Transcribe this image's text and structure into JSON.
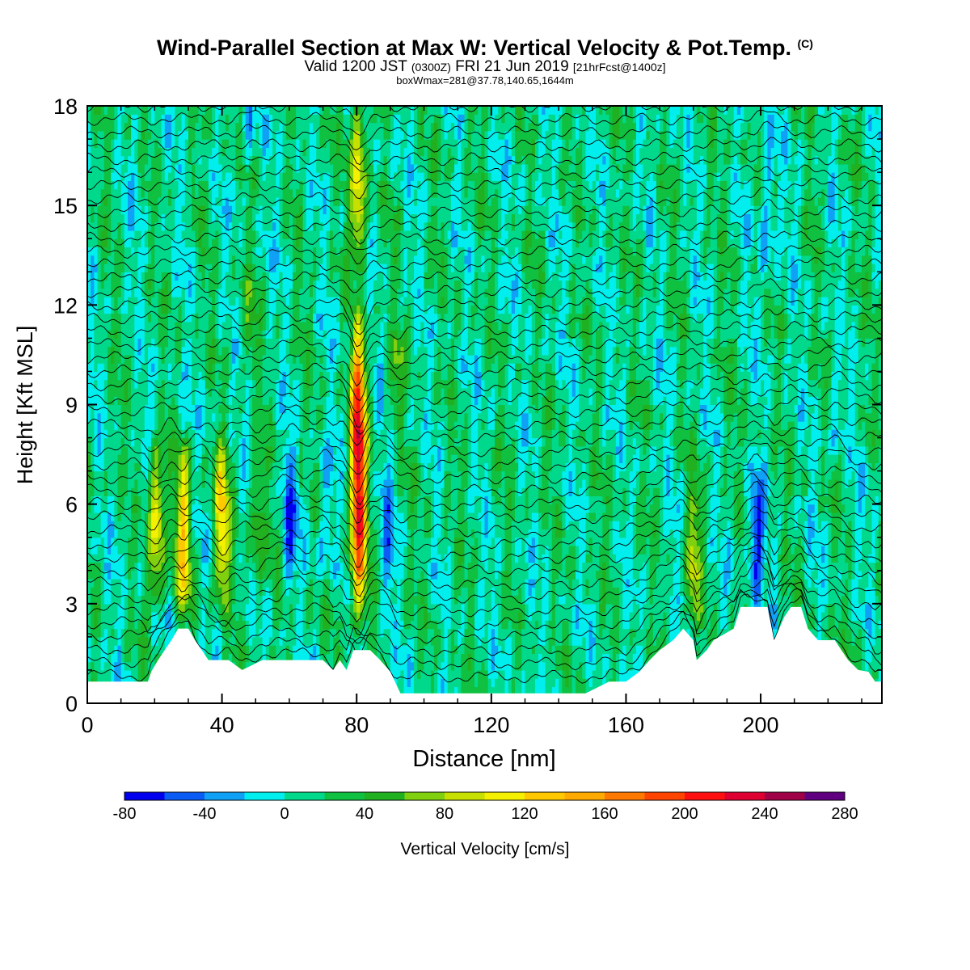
{
  "header": {
    "title": "Wind-Parallel Section at Max W: Vertical Velocity & Pot.Temp.",
    "copyright": "(C)",
    "valid_prefix": "Valid 1200 JST",
    "valid_utc": "(0300Z)",
    "valid_date": "FRI 21 Jun 2019",
    "forecast": "[21hrFcst@1400z]",
    "boxwmax": "boxWmax=281@37.78,140.65,1644m"
  },
  "chart_data": {
    "type": "heatmap",
    "xlabel": "Distance [nm]",
    "ylabel": "Height [Kft MSL]",
    "xlim": [
      0,
      236
    ],
    "ylim": [
      0,
      18
    ],
    "x_ticks": [
      0,
      40,
      80,
      120,
      160,
      200
    ],
    "y_ticks": [
      0,
      3,
      6,
      9,
      12,
      15,
      18
    ],
    "colorbar": {
      "label": "Vertical Velocity [cm/s]",
      "tick_labels": [
        "-80",
        "-40",
        "0",
        "40",
        "80",
        "120",
        "160",
        "200",
        "240",
        "280"
      ],
      "levels_start": -80,
      "levels_step": 20,
      "colors": [
        "#0000ee",
        "#0a5cf5",
        "#10a0f5",
        "#00eeee",
        "#00d98c",
        "#10c040",
        "#20b020",
        "#80d010",
        "#c8e000",
        "#f4f000",
        "#ffc800",
        "#ffaa00",
        "#ff7800",
        "#ff4400",
        "#ff1010",
        "#dd0030",
        "#a00048",
        "#600080"
      ],
      "placement": "bottom"
    },
    "background_level": 10,
    "w_max": 281,
    "features": [
      {
        "x": 20.5,
        "z0": 3.2,
        "z1": 7.6,
        "w": 110
      },
      {
        "x": 28.5,
        "z0": 3.0,
        "z1": 7.6,
        "w": 110
      },
      {
        "x": 40,
        "z0": 3.0,
        "z1": 7.8,
        "w": 100
      },
      {
        "x": 50.5,
        "z0": 3.0,
        "z1": 7.6,
        "w": 40
      },
      {
        "x": 80.5,
        "z0": 2.5,
        "z1": 11.5,
        "w": 220
      },
      {
        "x": 80.5,
        "z0": 13.5,
        "z1": 18,
        "w": 110
      },
      {
        "x": 92,
        "z0": 8.5,
        "z1": 10.8,
        "w": 40
      },
      {
        "x": 60,
        "z0": 3.5,
        "z1": 7.5,
        "w": -60
      },
      {
        "x": 71,
        "z0": 4.0,
        "z1": 7.5,
        "w": -40
      },
      {
        "x": 89,
        "z0": 2.8,
        "z1": 7.0,
        "w": -40
      },
      {
        "x": 180,
        "z0": 2.6,
        "z1": 6.2,
        "w": 70
      },
      {
        "x": 198.5,
        "z0": 3.0,
        "z1": 6.5,
        "w": -80
      },
      {
        "x": 222,
        "z0": 8.0,
        "z1": 9.8,
        "w": -40
      },
      {
        "x": 48,
        "z0": 10.5,
        "z1": 12.5,
        "w": 40
      },
      {
        "x": 202,
        "z0": 12,
        "z1": 18,
        "w": -40
      },
      {
        "x": 48,
        "z0": 16.5,
        "z1": 18,
        "w": -40
      }
    ],
    "terrain_kft": [
      [
        0,
        0.65
      ],
      [
        10,
        0.65
      ],
      [
        18,
        0.65
      ],
      [
        19,
        0.95
      ],
      [
        21,
        1.3
      ],
      [
        23,
        1.6
      ],
      [
        25,
        1.9
      ],
      [
        27,
        2.25
      ],
      [
        30,
        2.25
      ],
      [
        32,
        1.9
      ],
      [
        34,
        1.6
      ],
      [
        36,
        1.3
      ],
      [
        42,
        1.3
      ],
      [
        46,
        1.0
      ],
      [
        52,
        1.3
      ],
      [
        70,
        1.3
      ],
      [
        73,
        1.0
      ],
      [
        75,
        1.3
      ],
      [
        77,
        1.0
      ],
      [
        79,
        1.6
      ],
      [
        84,
        1.6
      ],
      [
        87,
        1.3
      ],
      [
        90,
        0.95
      ],
      [
        93,
        0.3
      ],
      [
        100,
        0.3
      ],
      [
        120,
        0.3
      ],
      [
        140,
        0.3
      ],
      [
        148,
        0.3
      ],
      [
        155,
        0.65
      ],
      [
        160,
        0.65
      ],
      [
        164,
        0.95
      ],
      [
        167,
        1.3
      ],
      [
        170,
        1.6
      ],
      [
        174,
        1.9
      ],
      [
        177,
        2.25
      ],
      [
        180,
        1.9
      ],
      [
        181,
        1.3
      ],
      [
        184,
        1.6
      ],
      [
        186,
        1.9
      ],
      [
        192,
        2.25
      ],
      [
        194,
        2.9
      ],
      [
        202,
        2.9
      ],
      [
        204,
        1.9
      ],
      [
        207,
        2.6
      ],
      [
        209,
        2.9
      ],
      [
        212,
        2.9
      ],
      [
        214,
        2.25
      ],
      [
        217,
        1.9
      ],
      [
        222,
        1.9
      ],
      [
        226,
        1.3
      ],
      [
        229,
        1.0
      ],
      [
        232,
        0.95
      ],
      [
        234,
        0.65
      ],
      [
        236,
        0.65
      ]
    ],
    "contours": {
      "count": 46,
      "base_kft": 0.8,
      "spacing_kft": 0.4
    }
  }
}
